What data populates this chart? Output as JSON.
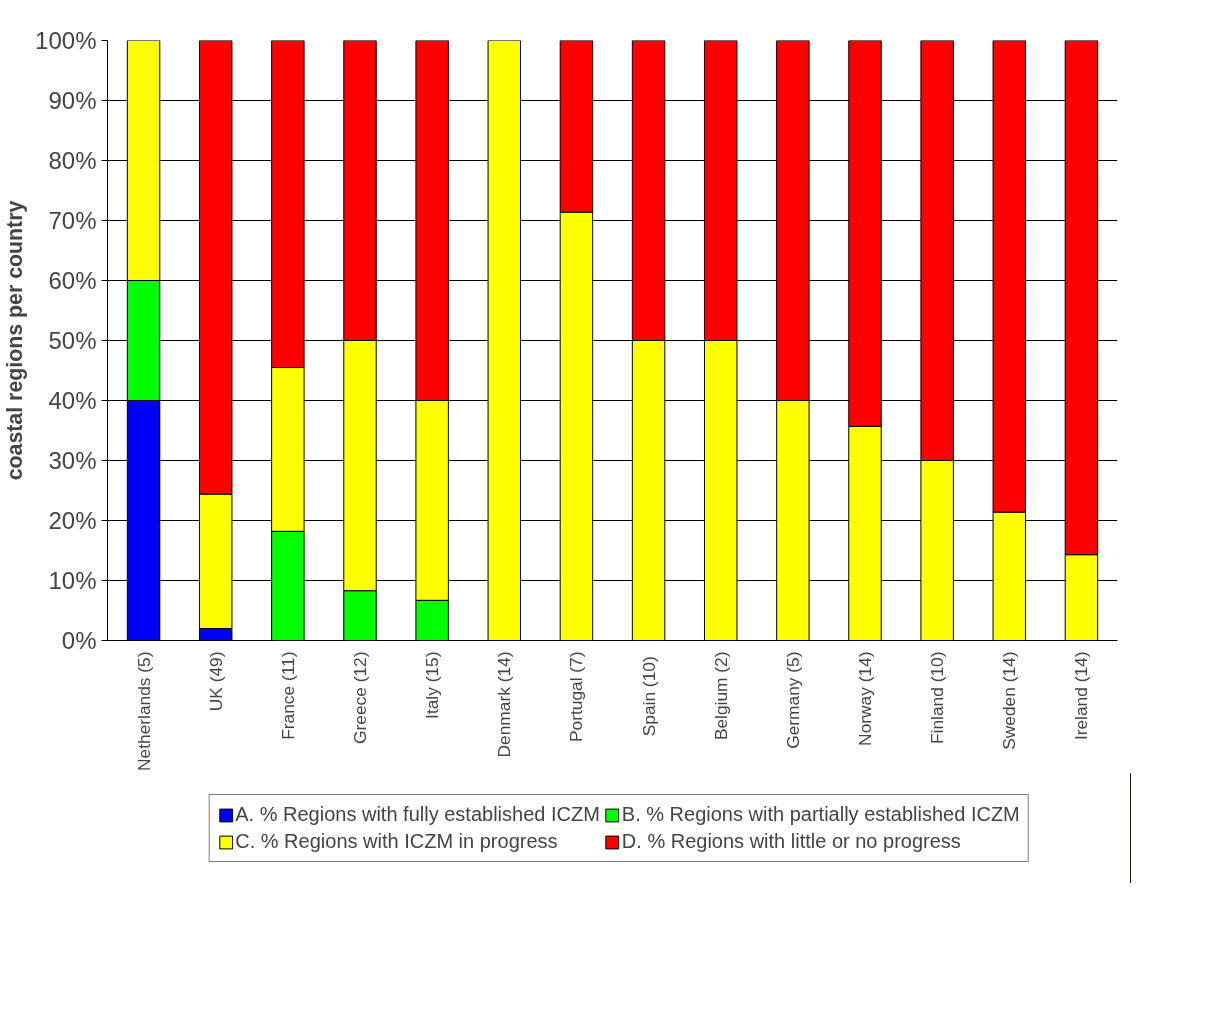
{
  "chart_data": {
    "type": "bar",
    "stacked": true,
    "ylabel": "coastal regions per country",
    "categories": [
      "Netherlands (5)",
      "UK (49)",
      "France (11)",
      "Greece (12)",
      "Italy (15)",
      "Denmark (14)",
      "Portugal (7)",
      "Spain  (10)",
      "Belgium (2)",
      "Germany (5)",
      "Norway (14)",
      "Finland (10)",
      "Sweden (14)",
      "Ireland (14)"
    ],
    "series": [
      {
        "name": "A. % Regions with fully established ICZM",
        "color": "#0000ff",
        "values": [
          40,
          2.0,
          0,
          0,
          0,
          0,
          0,
          0,
          0,
          0,
          0,
          0,
          0,
          0
        ]
      },
      {
        "name": "B. % Regions with partially established ICZM",
        "color": "#00ff00",
        "values": [
          20,
          0,
          18.2,
          8.3,
          6.7,
          0,
          0,
          0,
          0,
          0,
          0,
          0,
          0,
          0
        ]
      },
      {
        "name": "C. % Regions with ICZM in progress",
        "color": "#ffff00",
        "values": [
          40,
          22.4,
          27.3,
          41.7,
          33.3,
          100,
          71.4,
          50,
          50,
          40,
          35.7,
          30,
          21.4,
          14.3
        ]
      },
      {
        "name": "D. % Regions with little or no progress",
        "color": "#ff0000",
        "values": [
          0,
          75.6,
          54.5,
          50,
          60,
          0,
          28.6,
          50,
          50,
          60,
          64.3,
          70,
          78.6,
          85.7
        ]
      }
    ],
    "ylim": [
      0,
      100
    ],
    "yticks": [
      {
        "value": 0,
        "label": "0%"
      },
      {
        "value": 10,
        "label": "10%"
      },
      {
        "value": 20,
        "label": "20%"
      },
      {
        "value": 30,
        "label": "30%"
      },
      {
        "value": 40,
        "label": "40%"
      },
      {
        "value": 50,
        "label": "50%"
      },
      {
        "value": 60,
        "label": "60%"
      },
      {
        "value": 70,
        "label": "70%"
      },
      {
        "value": 80,
        "label": "80%"
      },
      {
        "value": 90,
        "label": "90%"
      },
      {
        "value": 100,
        "label": "100%"
      }
    ],
    "grid": "y",
    "legend": "bottom"
  }
}
